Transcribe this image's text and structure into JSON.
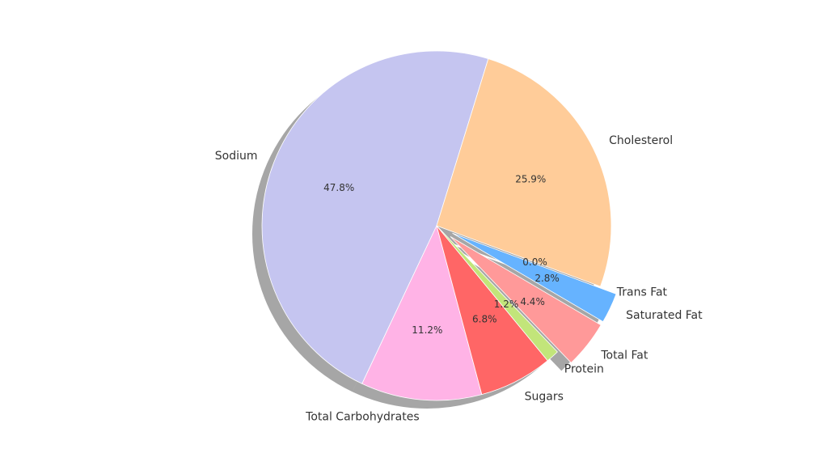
{
  "chart_data": {
    "type": "pie",
    "title": "",
    "start_angle_deg": 72.8,
    "direction": "counterclockwise",
    "shadow": true,
    "slices": [
      {
        "label": "Sodium",
        "value": 47.8,
        "pct_label": "47.8%",
        "color": "#c5c5f0",
        "explode": 0
      },
      {
        "label": "Total Carbohydrates",
        "value": 11.2,
        "pct_label": "11.2%",
        "color": "#ffb3e6",
        "explode": 0
      },
      {
        "label": "Sugars",
        "value": 6.8,
        "pct_label": "6.8%",
        "color": "#ff6666",
        "explode": 0
      },
      {
        "label": "Protein",
        "value": 1.2,
        "pct_label": "1.2%",
        "color": "#c2e57a",
        "explode": 0
      },
      {
        "label": "Total Fat",
        "value": 4.4,
        "pct_label": "4.4%",
        "color": "#ff9999",
        "explode": 0.1
      },
      {
        "label": "Saturated Fat",
        "value": 2.8,
        "pct_label": "2.8%",
        "color": "#66b3ff",
        "explode": 0.1
      },
      {
        "label": "Trans Fat",
        "value": 0.0,
        "pct_label": "0.0%",
        "color": "#99ff99",
        "explode": 0
      },
      {
        "label": "Cholesterol",
        "value": 25.9,
        "pct_label": "25.9%",
        "color": "#ffcc99",
        "explode": 0
      }
    ]
  }
}
